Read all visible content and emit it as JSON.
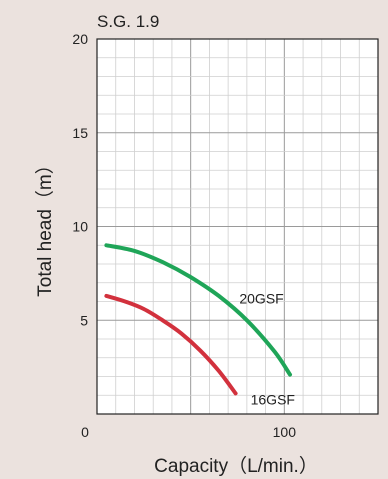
{
  "chart_data": {
    "type": "line",
    "title": "S.G. 1.9",
    "xlabel": "Capacity（L/min.）",
    "ylabel": "Total head（m）",
    "xlim": [
      0,
      150
    ],
    "ylim": [
      0,
      20
    ],
    "grid": true,
    "x_tick_labels": [
      {
        "value": 0,
        "label": "0"
      },
      {
        "value": 100,
        "label": "100"
      }
    ],
    "y_tick_labels": [
      {
        "value": 5,
        "label": "5"
      },
      {
        "value": 10,
        "label": "10"
      },
      {
        "value": 15,
        "label": "15"
      },
      {
        "value": 20,
        "label": "20"
      }
    ],
    "series": [
      {
        "name": "20GSF",
        "color": "#1fa558",
        "x": [
          5,
          20,
          35,
          50,
          65,
          80,
          95,
          103
        ],
        "y": [
          9.0,
          8.7,
          8.1,
          7.3,
          6.3,
          5.0,
          3.3,
          2.1
        ]
      },
      {
        "name": "16GSF",
        "color": "#d2313d",
        "x": [
          5,
          15,
          25,
          35,
          45,
          55,
          65,
          74
        ],
        "y": [
          6.3,
          6.0,
          5.6,
          5.0,
          4.3,
          3.4,
          2.3,
          1.1
        ]
      }
    ]
  }
}
